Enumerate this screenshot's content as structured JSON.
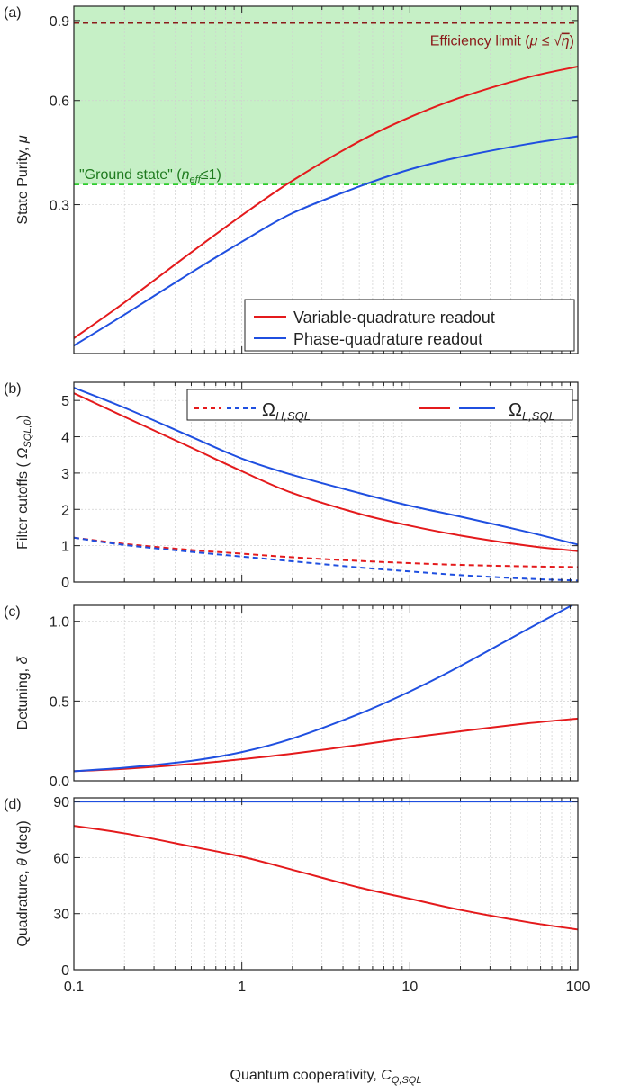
{
  "figure": {
    "xlabel_main": "Quantum cooperativity,",
    "xlabel_sym": "C",
    "xlabel_sub": "Q,SQL",
    "x_ticks": [
      "0.1",
      "1",
      "10",
      "100"
    ],
    "x_tick_values": [
      0.1,
      1,
      10,
      100
    ],
    "xlim": [
      0.1,
      100
    ],
    "xscale": "log"
  },
  "colors": {
    "red": "#e41a1c",
    "blue": "#1f4fe0",
    "maroon": "#8b1a1a",
    "green_fill": "#c6f0c6",
    "green_line": "#2ecc2e",
    "green_text": "#1e7a1e",
    "grid": "#d0d0d0"
  },
  "chart_data": [
    {
      "panel": "a",
      "panel_label": "(a)",
      "type": "line",
      "ylabel_main": "State Purity,",
      "ylabel_sym": "μ",
      "y_ticks": [
        "0.3",
        "0.6",
        "0.9"
      ],
      "y_tick_values": [
        0.3,
        0.6,
        0.9
      ],
      "ylim": [
        0.05,
        0.96
      ],
      "yscale": "sqrt",
      "region": {
        "from": 0.35,
        "to": 0.96
      },
      "hlines": [
        {
          "y": 0.89,
          "color": "maroon",
          "label_text": "Efficiency limit (",
          "label_sym": "μ ≤ ",
          "label_root": "η",
          "label_end": ")"
        },
        {
          "y": 0.35,
          "color": "green",
          "label_text": "\"Ground state\" (",
          "label_sym": "n",
          "label_sub": "eff",
          "label_end": "≤1)"
        }
      ],
      "legend": [
        {
          "label": "Variable-quadrature readout",
          "color": "red"
        },
        {
          "label": "Phase-quadrature readout",
          "color": "blue"
        }
      ],
      "series": [
        {
          "name": "Variable-quadrature readout",
          "color": "red",
          "x": [
            0.1,
            0.2,
            0.5,
            1,
            2,
            5,
            10,
            20,
            50,
            100
          ],
          "y": [
            0.066,
            0.112,
            0.197,
            0.275,
            0.36,
            0.47,
            0.545,
            0.61,
            0.68,
            0.72
          ]
        },
        {
          "name": "Phase-quadrature readout",
          "color": "blue",
          "x": [
            0.1,
            0.2,
            0.5,
            1,
            2,
            5,
            10,
            20,
            50,
            100
          ],
          "y": [
            0.058,
            0.095,
            0.16,
            0.218,
            0.28,
            0.345,
            0.39,
            0.425,
            0.462,
            0.485
          ]
        }
      ]
    },
    {
      "panel": "b",
      "panel_label": "(b)",
      "type": "line",
      "ylabel_main": "Filter cutoffs (",
      "ylabel_sym": "Ω",
      "ylabel_sub": "SQL,0",
      "ylabel_end": ")",
      "y_ticks": [
        "0",
        "1",
        "2",
        "3",
        "4",
        "5"
      ],
      "y_tick_values": [
        0,
        1,
        2,
        3,
        4,
        5
      ],
      "ylim": [
        0,
        5.5
      ],
      "yscale": "linear",
      "legend": [
        {
          "label": "Ω",
          "sub": "H,SQL",
          "style": "dashed"
        },
        {
          "label": "Ω",
          "sub": "L,SQL",
          "style": "solid"
        }
      ],
      "series": [
        {
          "name": "Ω_H,SQL",
          "color": "red",
          "dash": true,
          "x": [
            0.1,
            0.2,
            0.5,
            1,
            2,
            5,
            10,
            20,
            50,
            100
          ],
          "y": [
            1.22,
            1.05,
            0.88,
            0.78,
            0.68,
            0.58,
            0.52,
            0.47,
            0.43,
            0.41
          ]
        },
        {
          "name": "Ω_H,SQL",
          "color": "blue",
          "dash": true,
          "x": [
            0.1,
            0.2,
            0.5,
            1,
            2,
            5,
            10,
            20,
            50,
            100
          ],
          "y": [
            1.22,
            1.02,
            0.83,
            0.7,
            0.57,
            0.4,
            0.29,
            0.19,
            0.09,
            0.04
          ]
        },
        {
          "name": "Ω_L,SQL",
          "color": "red",
          "dash": false,
          "x": [
            0.1,
            0.2,
            0.5,
            1,
            2,
            5,
            10,
            20,
            50,
            100
          ],
          "y": [
            5.2,
            4.55,
            3.7,
            3.05,
            2.45,
            1.88,
            1.55,
            1.28,
            1.0,
            0.85
          ]
        },
        {
          "name": "Ω_L,SQL",
          "color": "blue",
          "dash": false,
          "x": [
            0.1,
            0.2,
            0.5,
            1,
            2,
            5,
            10,
            20,
            50,
            100
          ],
          "y": [
            5.35,
            4.8,
            4.0,
            3.4,
            2.95,
            2.45,
            2.1,
            1.8,
            1.38,
            1.03
          ]
        }
      ]
    },
    {
      "panel": "c",
      "panel_label": "(c)",
      "type": "line",
      "ylabel_main": "Detuning,",
      "ylabel_sym": "δ",
      "y_ticks": [
        "0.0",
        "0.5",
        "1.0"
      ],
      "y_tick_values": [
        0,
        0.5,
        1.0
      ],
      "ylim": [
        0,
        1.1
      ],
      "yscale": "linear",
      "series": [
        {
          "name": "Variable-quadrature readout",
          "color": "red",
          "x": [
            0.1,
            0.2,
            0.5,
            1,
            2,
            5,
            10,
            20,
            50,
            100
          ],
          "y": [
            0.06,
            0.075,
            0.105,
            0.135,
            0.17,
            0.225,
            0.27,
            0.31,
            0.36,
            0.39
          ]
        },
        {
          "name": "Phase-quadrature readout",
          "color": "blue",
          "x": [
            0.1,
            0.2,
            0.5,
            1,
            2,
            5,
            10,
            20,
            50,
            100
          ],
          "y": [
            0.06,
            0.082,
            0.125,
            0.18,
            0.265,
            0.42,
            0.56,
            0.72,
            0.95,
            1.12
          ]
        }
      ]
    },
    {
      "panel": "d",
      "panel_label": "(d)",
      "type": "line",
      "ylabel_main": "Quadrature,",
      "ylabel_sym": "θ",
      "ylabel_end": " (deg)",
      "y_ticks": [
        "0",
        "30",
        "60",
        "90"
      ],
      "y_tick_values": [
        0,
        30,
        60,
        90
      ],
      "ylim": [
        0,
        92
      ],
      "yscale": "linear",
      "series": [
        {
          "name": "Variable-quadrature readout",
          "color": "red",
          "x": [
            0.1,
            0.2,
            0.5,
            1,
            2,
            5,
            10,
            20,
            50,
            100
          ],
          "y": [
            77,
            73,
            66,
            60.5,
            53.5,
            44,
            38,
            32,
            25.5,
            21.5
          ]
        },
        {
          "name": "Phase-quadrature readout",
          "color": "blue",
          "x": [
            0.1,
            100
          ],
          "y": [
            90,
            90
          ]
        }
      ]
    }
  ]
}
